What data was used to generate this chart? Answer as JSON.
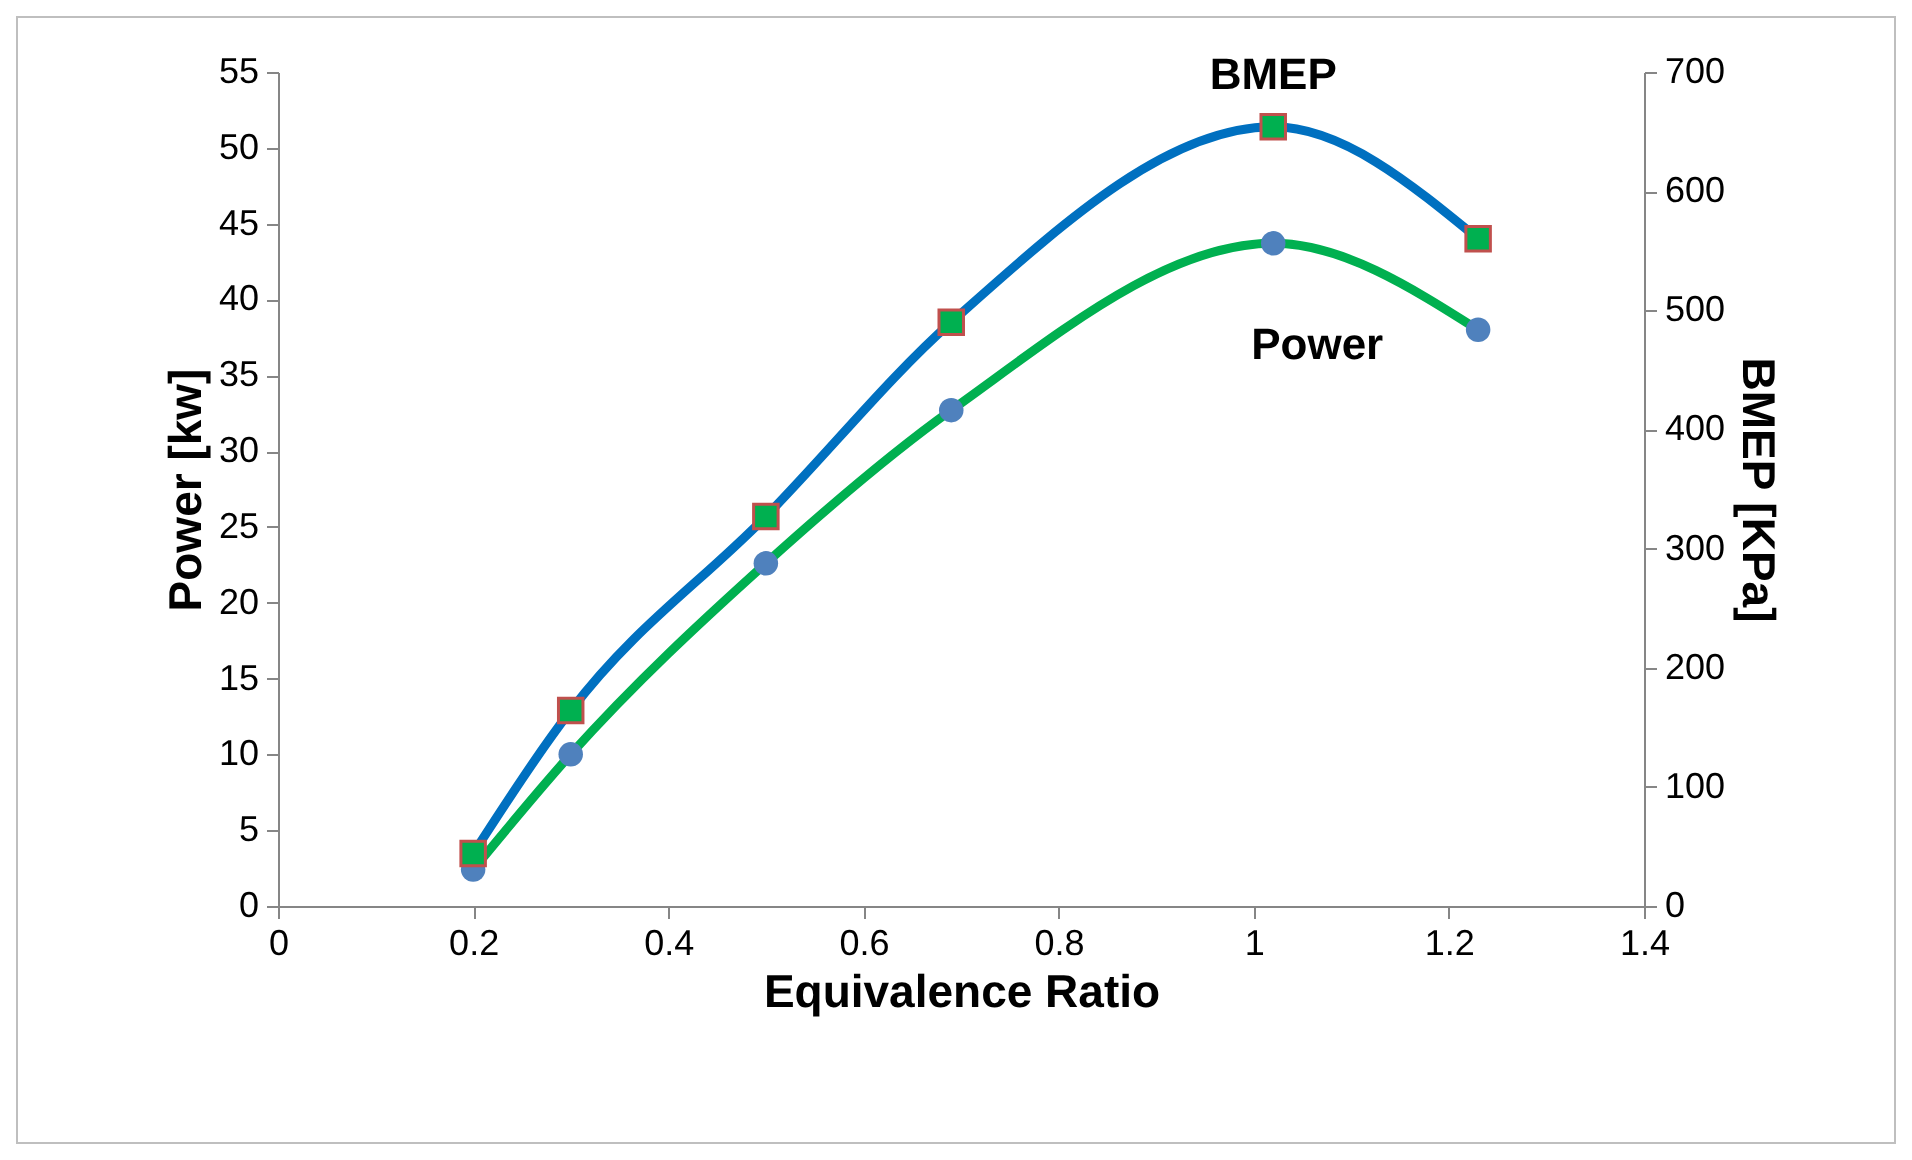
{
  "chart_data": {
    "type": "line",
    "xlabel": "Equivalence Ratio",
    "ylabel": "Power [kw]",
    "y2label": "BMEP [KPa]",
    "x": [
      0.2,
      0.3,
      0.5,
      0.69,
      1.02,
      1.23
    ],
    "series": [
      {
        "name": "Power",
        "color": "#00b050",
        "colors": [
          "#4f81bd",
          "#4f81bd",
          "#4f81bd",
          "#4f81bd",
          "#4f81bd",
          "#4f81bd"
        ],
        "marker": "circle",
        "values": [
          2.4,
          10.0,
          22.6,
          32.7,
          43.7,
          38.0
        ]
      },
      {
        "name": "BMEP",
        "color": "#0070c0",
        "colors": [
          "#00b050",
          "#00b050",
          "#00b050",
          "#00b050",
          "#00b050",
          "#00b050"
        ],
        "marker": "square",
        "axis": "y2",
        "values": [
          44,
          164,
          327,
          490,
          654,
          560
        ]
      }
    ],
    "xlim": [
      0,
      1.4
    ],
    "xticks": [
      0,
      0.2,
      0.4,
      0.6,
      0.8,
      1,
      1.2,
      1.4
    ],
    "ylim": [
      0,
      55
    ],
    "yticks": [
      0,
      5,
      10,
      15,
      20,
      25,
      30,
      35,
      40,
      45,
      50,
      55
    ],
    "y2lim": [
      0,
      700
    ],
    "y2ticks": [
      0,
      100,
      200,
      300,
      400,
      500,
      600,
      700
    ],
    "grid": false,
    "legend": false
  }
}
